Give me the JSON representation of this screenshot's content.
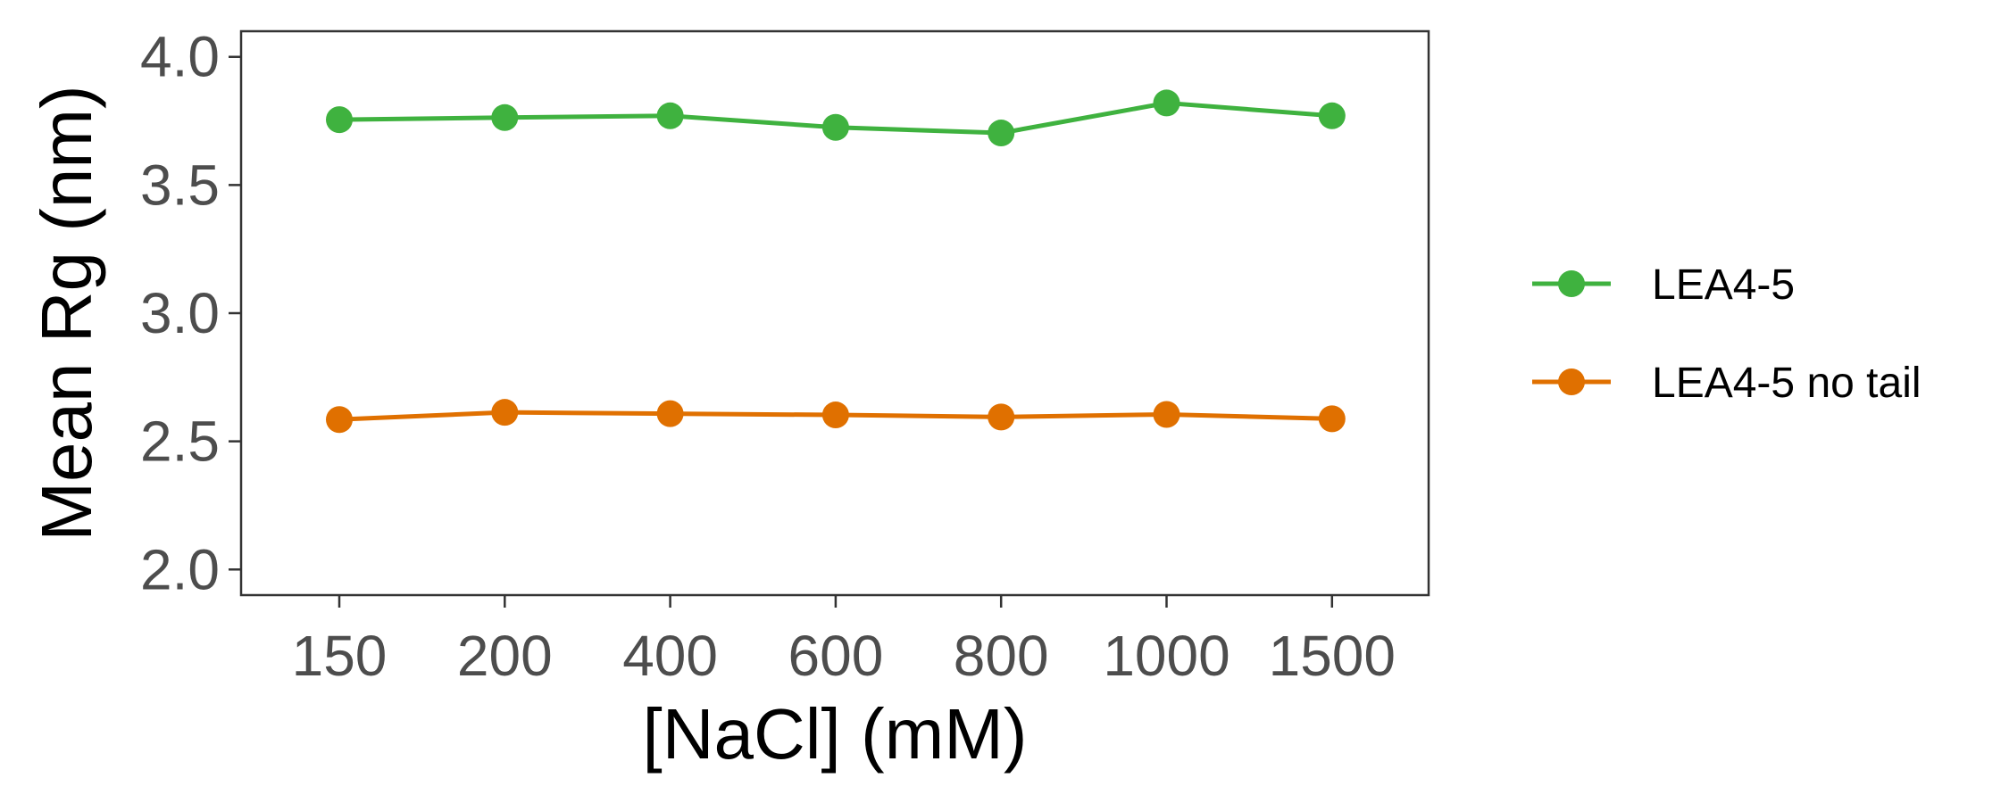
{
  "chart_data": {
    "type": "line",
    "categories": [
      "150",
      "200",
      "400",
      "600",
      "800",
      "1000",
      "1500"
    ],
    "series": [
      {
        "name": "LEA4-5",
        "color": "#3fb23f",
        "values": [
          3.755,
          3.763,
          3.77,
          3.725,
          3.703,
          3.82,
          3.77
        ]
      },
      {
        "name": "LEA4-5 no tail",
        "color": "#e07000",
        "values": [
          2.585,
          2.613,
          2.608,
          2.603,
          2.595,
          2.605,
          2.588
        ]
      }
    ],
    "title": "",
    "xlabel": "[NaCl] (mM)",
    "ylabel": "Mean Rg (nm)",
    "ylim": [
      1.9,
      4.1
    ],
    "yticks": [
      2.0,
      2.5,
      3.0,
      3.5,
      4.0
    ],
    "ytick_labels": [
      "2.0",
      "2.5",
      "3.0",
      "3.5",
      "4.0"
    ],
    "grid": false,
    "legend_position": "right",
    "colors": {
      "axis": "#333333",
      "tick_label": "#4d4d4d"
    }
  }
}
